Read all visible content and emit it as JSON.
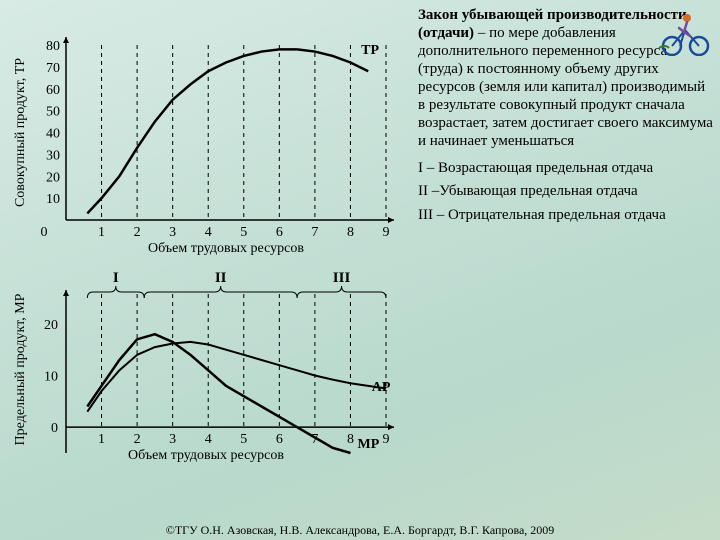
{
  "text": {
    "main_html": "<b>Закон убывающей производительности (отдачи)</b> – по мере добавления дополнительного переменного ресурса (труда) к постоянному объему других ресурсов (земля или капитал) производимый в результате совокупный продукт сначала возрастает, затем достигает своего максимума и начинает уменьшаться",
    "leg1": "I – Возрастающая предельная отдача",
    "leg2": "II –Убывающая предельная отдача",
    "leg3": "III – Отрицательная предельная отдача",
    "footer": "©ТГУ   О.Н. Азовская, Н.В. Александрова, Е.А. Боргардт, В.Г. Капрова, 2009"
  },
  "top_chart": {
    "type": "line",
    "ylabel": "Совокупный продукт, TP",
    "xlabel": "Объем трудовых ресурсов",
    "curve_label": "TP",
    "xlim": [
      0,
      9
    ],
    "xtick_step": 1,
    "ylim": [
      0,
      80
    ],
    "ytick_step": 10,
    "series_color": "#000000",
    "grid_dash": "4,4",
    "points": [
      [
        0.6,
        3
      ],
      [
        1,
        10
      ],
      [
        1.5,
        20
      ],
      [
        2,
        33
      ],
      [
        2.5,
        45
      ],
      [
        3,
        55
      ],
      [
        3.5,
        62
      ],
      [
        4,
        68
      ],
      [
        4.5,
        72
      ],
      [
        5,
        75
      ],
      [
        5.5,
        77
      ],
      [
        6,
        78
      ],
      [
        6.5,
        78
      ],
      [
        7,
        77
      ],
      [
        7.5,
        75
      ],
      [
        8,
        72
      ],
      [
        8.5,
        68
      ]
    ]
  },
  "bottom_chart": {
    "type": "line",
    "ylabel": "Предельный продукт, MP",
    "xlabel": "Объем трудовых ресурсов",
    "xlim": [
      0,
      9
    ],
    "xtick_step": 1,
    "ylim": [
      -5,
      25
    ],
    "yticks": [
      0,
      10,
      20
    ],
    "series_color": "#000000",
    "grid_dash": "4,4",
    "regions": [
      "I",
      "II",
      "III"
    ],
    "region_boundaries": [
      0.6,
      2.2,
      6.5,
      9
    ],
    "mp_points": [
      [
        0.6,
        4
      ],
      [
        1,
        8
      ],
      [
        1.5,
        13
      ],
      [
        2,
        17
      ],
      [
        2.5,
        18
      ],
      [
        3,
        16.5
      ],
      [
        3.5,
        14
      ],
      [
        4,
        11
      ],
      [
        4.5,
        8
      ],
      [
        5,
        6
      ],
      [
        5.5,
        4
      ],
      [
        6,
        2
      ],
      [
        6.5,
        0
      ],
      [
        7,
        -2
      ],
      [
        7.5,
        -4
      ],
      [
        8,
        -5
      ]
    ],
    "ap_points": [
      [
        0.6,
        3
      ],
      [
        1,
        7
      ],
      [
        1.5,
        11
      ],
      [
        2,
        14
      ],
      [
        2.5,
        15.5
      ],
      [
        3,
        16.2
      ],
      [
        3.5,
        16.5
      ],
      [
        4,
        16
      ],
      [
        4.5,
        15
      ],
      [
        5,
        14
      ],
      [
        5.5,
        13
      ],
      [
        6,
        12
      ],
      [
        6.5,
        11
      ],
      [
        7,
        10
      ],
      [
        7.5,
        9.2
      ],
      [
        8,
        8.5
      ],
      [
        8.5,
        8
      ],
      [
        9,
        7.5
      ]
    ],
    "mp_label": "MP",
    "ap_label": "AP"
  },
  "colors": {
    "axis": "#000000",
    "grid": "#000000",
    "text": "#000000"
  }
}
